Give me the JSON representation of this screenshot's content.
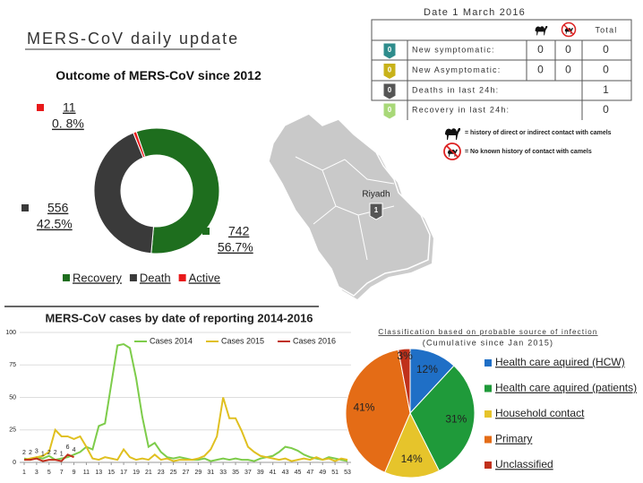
{
  "header": {
    "title": "MERS-CoV daily update"
  },
  "table": {
    "date": "Date  1 March 2016",
    "total_header": "Total",
    "rows": [
      {
        "badge": 0,
        "label": "New symptomatic:",
        "camel": 0,
        "no_camel": 0,
        "total": 0
      },
      {
        "badge": 0,
        "label": "New Asymptomatic:",
        "camel": 0,
        "no_camel": 0,
        "total": 0
      },
      {
        "badge": 0,
        "label": "Deaths in last 24h:",
        "total": 1
      },
      {
        "badge": 0,
        "label": "Recovery in last 24h:",
        "total": 0
      }
    ],
    "legend": [
      "= history of direct or indirect contact with camels",
      "= No known history of contact with camels"
    ]
  },
  "map": {
    "city": "Riyadh",
    "badge": 1
  },
  "chart_data": [
    {
      "type": "donut",
      "title": "Outcome of MERS-CoV since 2012",
      "categories": [
        "Recovery",
        "Death",
        "Active"
      ],
      "values": [
        742,
        556,
        11
      ],
      "percentages": [
        56.7,
        42.5,
        0.8
      ],
      "percentage_labels": [
        "56.7%",
        "42.5%",
        "0. 8%"
      ],
      "colors": [
        "#1e6e1e",
        "#3a3a3a",
        "#e8191a"
      ]
    },
    {
      "type": "line",
      "title": "MERS-CoV cases by date of reporting 2014-2016",
      "x": [
        1,
        2,
        3,
        4,
        5,
        6,
        7,
        8,
        9,
        10,
        11,
        12,
        13,
        14,
        15,
        16,
        17,
        18,
        19,
        20,
        21,
        22,
        23,
        24,
        25,
        26,
        27,
        28,
        29,
        30,
        31,
        32,
        33,
        34,
        35,
        36,
        37,
        38,
        39,
        40,
        41,
        42,
        43,
        44,
        45,
        46,
        47,
        48,
        49,
        50,
        51,
        52,
        53
      ],
      "xlim": [
        1,
        53
      ],
      "xticks": [
        1,
        3,
        5,
        7,
        9,
        11,
        13,
        15,
        17,
        19,
        21,
        23,
        25,
        27,
        29,
        31,
        33,
        35,
        37,
        39,
        41,
        43,
        45,
        47,
        49,
        51,
        53
      ],
      "ylim": [
        0,
        100
      ],
      "yticks": [
        0,
        25,
        50,
        75,
        100
      ],
      "grid": true,
      "series": [
        {
          "name": "Cases 2014",
          "color": "#7dcc4a",
          "values": [
            3,
            2,
            4,
            3,
            5,
            2,
            3,
            4,
            6,
            8,
            12,
            10,
            28,
            30,
            60,
            90,
            91,
            88,
            65,
            35,
            12,
            15,
            8,
            4,
            3,
            4,
            3,
            2,
            2,
            3,
            1,
            2,
            3,
            2,
            3,
            2,
            2,
            1,
            3,
            4,
            5,
            8,
            12,
            11,
            9,
            6,
            4,
            3,
            2,
            4,
            3,
            2,
            1
          ]
        },
        {
          "name": "Cases 2015",
          "color": "#e0c020",
          "values": [
            2,
            3,
            4,
            5,
            8,
            25,
            20,
            20,
            18,
            20,
            12,
            3,
            2,
            4,
            3,
            2,
            10,
            4,
            2,
            3,
            2,
            6,
            2,
            3,
            1,
            2,
            2,
            2,
            3,
            5,
            10,
            20,
            50,
            34,
            34,
            24,
            12,
            8,
            5,
            4,
            3,
            2,
            3,
            1,
            2,
            3,
            2,
            4,
            2,
            3,
            1,
            3,
            2
          ]
        },
        {
          "name": "Cases 2016",
          "color": "#c0301c",
          "values": [
            2,
            2,
            3,
            1,
            2,
            2,
            1,
            6,
            4,
            null,
            null,
            null,
            null,
            null,
            null,
            null,
            null,
            null,
            null,
            null,
            null,
            null,
            null,
            null,
            null,
            null,
            null,
            null,
            null,
            null,
            null,
            null,
            null,
            null,
            null,
            null,
            null,
            null,
            null,
            null,
            null,
            null,
            null,
            null,
            null,
            null,
            null,
            null,
            null,
            null,
            null,
            null,
            null
          ]
        }
      ]
    },
    {
      "type": "pie",
      "title": "Classification based on probable source of infection",
      "subtitle": "(Cumulative since Jan 2015)",
      "categories": [
        "Health care aquired (HCW)",
        "Health care aquired (patients)",
        "Household contact",
        "Primary",
        "Unclassified"
      ],
      "values": [
        12,
        31,
        14,
        41,
        3
      ],
      "value_labels": [
        "12%",
        "31%",
        "14%",
        "41%",
        "3%"
      ],
      "colors": [
        "#1f6fc6",
        "#1f9a3a",
        "#e6c42b",
        "#e46c16",
        "#c0311b"
      ]
    }
  ]
}
